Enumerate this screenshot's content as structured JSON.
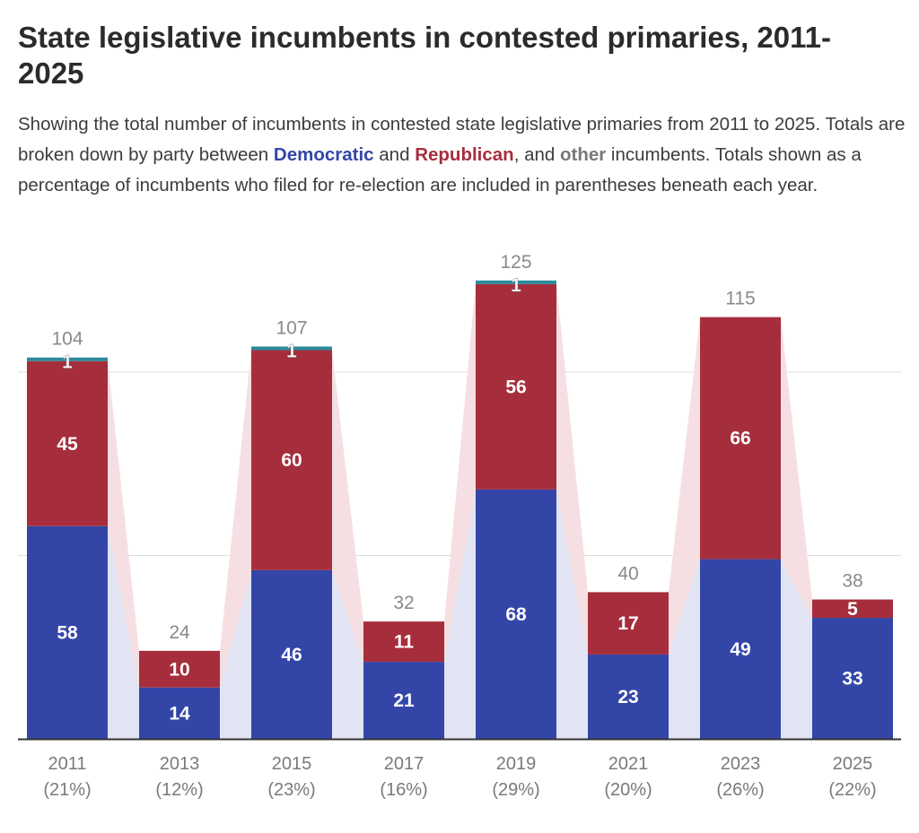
{
  "title": "State legislative incumbents in contested primaries, 2011-2025",
  "subtitle": {
    "part1": "Showing the total number of incumbents in contested state legislative primaries from 2011 to 2025. Totals are broken down by party between ",
    "dem": "Democratic",
    "part2": " and ",
    "rep": "Republican",
    "part3": ", and ",
    "other": "other",
    "part4": " incumbents. Totals shown as a percentage of incumbents who filed for re-election are included in parentheses beneath each year."
  },
  "colors": {
    "democratic": "#3346a8",
    "republican": "#a62e3c",
    "other": "#2b8a9c",
    "dem_band": "#e3e4f3",
    "rep_band": "#f6dfe2",
    "grid": "#dddddd",
    "axis": "#333333"
  },
  "chart_data": {
    "type": "bar",
    "stacked": true,
    "categories": [
      "2011",
      "2013",
      "2015",
      "2017",
      "2019",
      "2021",
      "2023",
      "2025"
    ],
    "category_notes": [
      "(21%)",
      "(12%)",
      "(23%)",
      "(16%)",
      "(29%)",
      "(20%)",
      "(26%)",
      "(22%)"
    ],
    "series": [
      {
        "name": "Democratic",
        "values": [
          58,
          14,
          46,
          21,
          68,
          23,
          49,
          33
        ]
      },
      {
        "name": "Republican",
        "values": [
          45,
          10,
          60,
          11,
          56,
          17,
          66,
          5
        ]
      },
      {
        "name": "other",
        "values": [
          1,
          0,
          1,
          0,
          1,
          0,
          0,
          0
        ]
      }
    ],
    "totals": [
      104,
      24,
      107,
      32,
      125,
      40,
      115,
      38
    ],
    "ylim": [
      0,
      125
    ],
    "gridlines": [
      50,
      100
    ],
    "xlabel": "",
    "ylabel": ""
  }
}
